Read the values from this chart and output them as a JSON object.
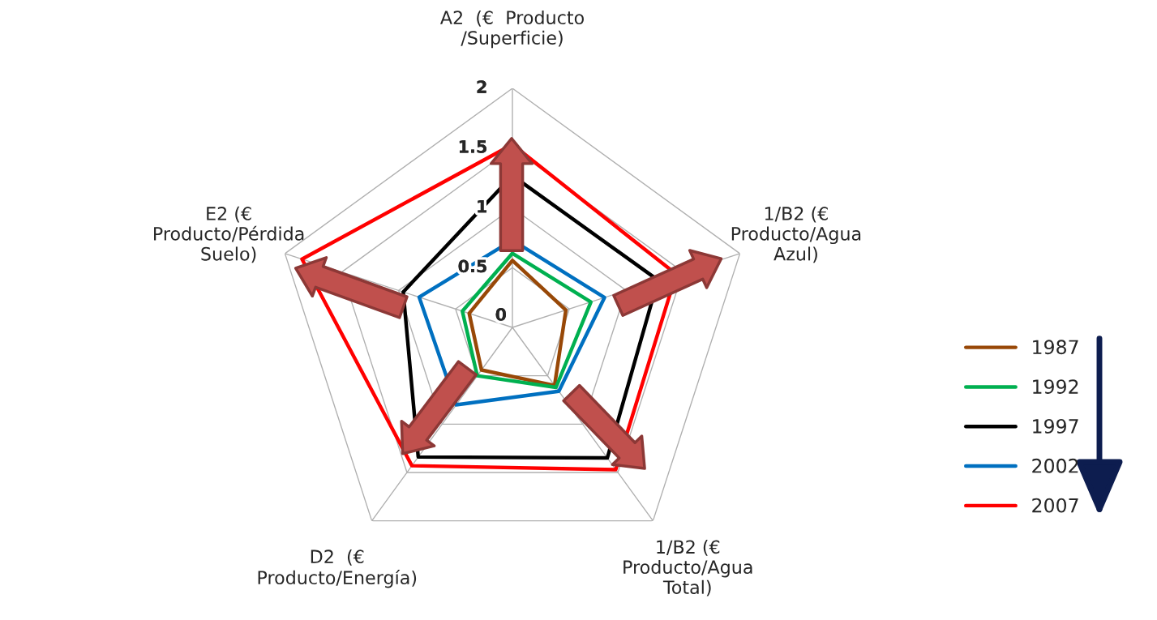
{
  "chart_data": {
    "type": "radar",
    "categories": [
      "A2  (€  Producto\n/Superficie)",
      "1/B2 (€\nProducto/Agua\nAzul)",
      "1/B2 (€\nProducto/Agua\nTotal)",
      "D2  (€\nProducto/Energía)",
      "E2 (€\nProducto/Pérdida\nSuelo)"
    ],
    "series": [
      {
        "name": "1987",
        "color": "#984807",
        "values": [
          0.56,
          0.47,
          0.6,
          0.44,
          0.38
        ]
      },
      {
        "name": "1992",
        "color": "#00b050",
        "values": [
          0.62,
          0.69,
          0.62,
          0.5,
          0.44
        ]
      },
      {
        "name": "1997",
        "color": "#000000",
        "values": [
          1.27,
          1.28,
          1.35,
          1.34,
          0.96
        ]
      },
      {
        "name": "2002",
        "color": "#0070c0",
        "values": [
          0.73,
          0.81,
          0.66,
          0.8,
          0.82
        ]
      },
      {
        "name": "2007",
        "color": "#ff0000",
        "values": [
          1.53,
          1.44,
          1.47,
          1.43,
          1.85
        ]
      }
    ],
    "ylim": [
      0,
      2
    ],
    "yticks": [
      0,
      0.5,
      1,
      1.5,
      2
    ],
    "grid": true,
    "legend": "right",
    "marker": "none",
    "line_style": "solid"
  }
}
